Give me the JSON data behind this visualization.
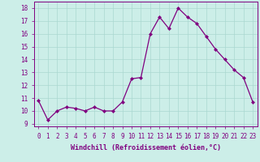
{
  "x": [
    0,
    1,
    2,
    3,
    4,
    5,
    6,
    7,
    8,
    9,
    10,
    11,
    12,
    13,
    14,
    15,
    16,
    17,
    18,
    19,
    20,
    21,
    22,
    23
  ],
  "y": [
    10.8,
    9.3,
    10.0,
    10.3,
    10.2,
    10.0,
    10.3,
    10.0,
    10.0,
    10.7,
    12.5,
    12.6,
    16.0,
    17.3,
    16.4,
    18.0,
    17.3,
    16.8,
    15.8,
    14.8,
    14.0,
    13.2,
    12.6,
    10.7
  ],
  "line_color": "#800080",
  "marker": "D",
  "marker_size": 2.0,
  "linewidth": 0.9,
  "bg_color": "#cceee8",
  "grid_color": "#aad8d0",
  "xlabel": "Windchill (Refroidissement éolien,°C)",
  "xlabel_fontsize": 6.0,
  "ylabel_ticks": [
    9,
    10,
    11,
    12,
    13,
    14,
    15,
    16,
    17,
    18
  ],
  "xtick_labels": [
    "0",
    "1",
    "2",
    "3",
    "4",
    "5",
    "6",
    "7",
    "8",
    "9",
    "10",
    "11",
    "12",
    "13",
    "14",
    "15",
    "16",
    "17",
    "18",
    "19",
    "20",
    "21",
    "22",
    "23"
  ],
  "ylim": [
    8.8,
    18.5
  ],
  "xlim": [
    -0.5,
    23.5
  ],
  "tick_fontsize": 5.5
}
